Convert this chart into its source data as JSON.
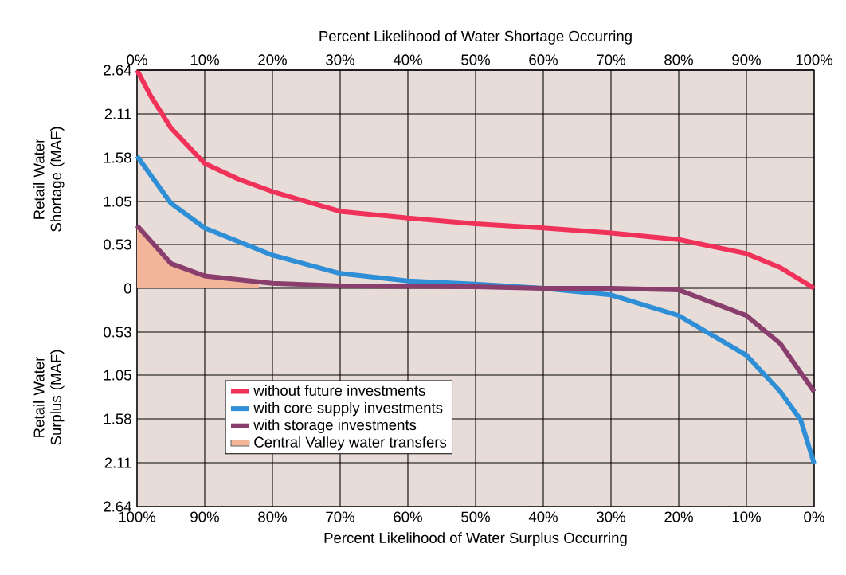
{
  "chart_data": {
    "type": "line",
    "xlabel": "Percent Likelihood of Water Surplus Occurring",
    "x2label": "Percent Likelihood of Water Shortage Occurring",
    "ylabel": "Retail Water Shortage (MAF)",
    "annotations": [
      "Retail Water Surplus (MAF)"
    ],
    "xlim": [
      100,
      0
    ],
    "x2lim": [
      0,
      100
    ],
    "xticks": [
      {
        "value": 100,
        "label": "100%"
      },
      {
        "value": 90,
        "label": "90%"
      },
      {
        "value": 80,
        "label": "80%"
      },
      {
        "value": 70,
        "label": "70%"
      },
      {
        "value": 60,
        "label": "60%"
      },
      {
        "value": 50,
        "label": "50%"
      },
      {
        "value": 40,
        "label": "40%"
      },
      {
        "value": 30,
        "label": "30%"
      },
      {
        "value": 20,
        "label": "20%"
      },
      {
        "value": 10,
        "label": "10%"
      },
      {
        "value": 0,
        "label": "0%"
      }
    ],
    "x2ticks": [
      {
        "value": 0,
        "label": "0%"
      },
      {
        "value": 10,
        "label": "10%"
      },
      {
        "value": 20,
        "label": "20%"
      },
      {
        "value": 30,
        "label": "30%"
      },
      {
        "value": 40,
        "label": "40%"
      },
      {
        "value": 50,
        "label": "50%"
      },
      {
        "value": 60,
        "label": "60%"
      },
      {
        "value": 70,
        "label": "70%"
      },
      {
        "value": 80,
        "label": "80%"
      },
      {
        "value": 90,
        "label": "90%"
      },
      {
        "value": 100,
        "label": "100%"
      }
    ],
    "ylim": [
      -2.64,
      2.64
    ],
    "yticks": [
      {
        "value": -2.64,
        "label": "2.64"
      },
      {
        "value": -2.11,
        "label": "2.11"
      },
      {
        "value": -1.58,
        "label": "1.58"
      },
      {
        "value": -1.05,
        "label": "1.05"
      },
      {
        "value": -0.53,
        "label": "0.53"
      },
      0,
      0.53,
      1.05,
      1.58,
      2.11,
      2.64
    ],
    "grid": true,
    "legend": "bottom left",
    "line_style": "solid",
    "marker": "none",
    "series": [
      {
        "name": "without future investments",
        "color": "#f0325a",
        "x": [
          100,
          98,
          95,
          90,
          85,
          80,
          70,
          60,
          50,
          40,
          30,
          20,
          10,
          5,
          0
        ],
        "values": [
          2.64,
          2.33,
          1.94,
          1.51,
          1.32,
          1.17,
          0.93,
          0.85,
          0.78,
          0.73,
          0.67,
          0.59,
          0.42,
          0.25,
          0
        ]
      },
      {
        "name": "with core supply investments",
        "color": "#2f8fd6",
        "x": [
          100,
          95,
          90,
          80,
          70,
          60,
          50,
          40,
          30,
          20,
          10,
          5,
          2,
          0
        ],
        "values": [
          1.6,
          1.03,
          0.73,
          0.4,
          0.18,
          0.09,
          0.05,
          0,
          -0.08,
          -0.33,
          -0.81,
          -1.25,
          -1.59,
          -2.12
        ]
      },
      {
        "name": "with storage investments",
        "color": "#8a3e6e",
        "x": [
          100,
          95,
          90,
          80,
          70,
          50,
          40,
          30,
          20,
          10,
          5,
          0
        ],
        "values": [
          0.76,
          0.3,
          0.15,
          0.06,
          0.03,
          0.02,
          0,
          0,
          -0.02,
          -0.33,
          -0.67,
          -1.25
        ]
      },
      {
        "name": "Central Valley water transfers",
        "type": "area",
        "color": "#f4b49a",
        "x": [
          100,
          95,
          90,
          85,
          82
        ],
        "values": [
          0.76,
          0.3,
          0.15,
          0.08,
          0.05
        ]
      }
    ]
  }
}
